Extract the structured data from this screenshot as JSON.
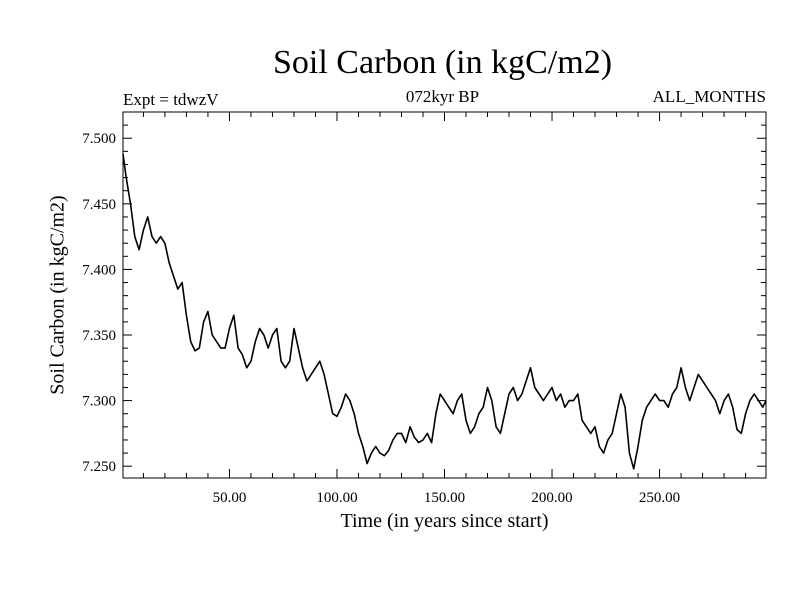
{
  "chart_data": {
    "type": "line",
    "title": "Soil Carbon (in kgC/m2)",
    "subtitle": "072kyr BP",
    "annotation_left": "Expt = tdwzV",
    "annotation_right": "ALL_MONTHS",
    "xlabel": "Time (in years since start)",
    "ylabel": "Soil Carbon (in kgC/m2)",
    "xlim": [
      0.5,
      299.5
    ],
    "ylim": [
      7.241,
      7.52
    ],
    "xticks": [
      50,
      100,
      150,
      200,
      250
    ],
    "xtick_labels": [
      "50.00",
      "100.00",
      "150.00",
      "200.00",
      "250.00"
    ],
    "yticks": [
      7.25,
      7.3,
      7.35,
      7.4,
      7.45,
      7.5
    ],
    "ytick_labels": [
      "7.250",
      "7.300",
      "7.350",
      "7.400",
      "7.450",
      "7.500"
    ],
    "grid": false,
    "series": [
      {
        "color": "#000000",
        "x": [
          0.5,
          2,
          4,
          6,
          8,
          10,
          12,
          14,
          16,
          18,
          20,
          22,
          24,
          26,
          28,
          30,
          32,
          34,
          36,
          38,
          40,
          42,
          44,
          46,
          48,
          50,
          52,
          54,
          56,
          58,
          60,
          62,
          64,
          66,
          68,
          70,
          72,
          74,
          76,
          78,
          80,
          82,
          84,
          86,
          88,
          90,
          92,
          94,
          96,
          98,
          100,
          102,
          104,
          106,
          108,
          110,
          112,
          114,
          116,
          118,
          120,
          122,
          124,
          126,
          128,
          130,
          132,
          134,
          136,
          138,
          140,
          142,
          144,
          146,
          148,
          150,
          152,
          154,
          156,
          158,
          160,
          162,
          164,
          166,
          168,
          170,
          172,
          174,
          176,
          178,
          180,
          182,
          184,
          186,
          188,
          190,
          192,
          194,
          196,
          198,
          200,
          202,
          204,
          206,
          208,
          210,
          212,
          214,
          216,
          218,
          220,
          222,
          224,
          226,
          228,
          230,
          232,
          234,
          236,
          238,
          240,
          242,
          244,
          246,
          248,
          250,
          252,
          254,
          256,
          258,
          260,
          262,
          264,
          266,
          268,
          270,
          272,
          274,
          276,
          278,
          280,
          282,
          284,
          286,
          288,
          290,
          292,
          294,
          296,
          298,
          299.5
        ],
        "y": [
          7.488,
          7.47,
          7.45,
          7.425,
          7.415,
          7.43,
          7.44,
          7.425,
          7.42,
          7.425,
          7.42,
          7.405,
          7.395,
          7.385,
          7.39,
          7.365,
          7.345,
          7.338,
          7.34,
          7.36,
          7.368,
          7.35,
          7.345,
          7.34,
          7.34,
          7.355,
          7.365,
          7.34,
          7.335,
          7.325,
          7.33,
          7.345,
          7.355,
          7.35,
          7.34,
          7.35,
          7.355,
          7.33,
          7.325,
          7.33,
          7.355,
          7.34,
          7.325,
          7.315,
          7.32,
          7.325,
          7.33,
          7.32,
          7.305,
          7.29,
          7.288,
          7.295,
          7.305,
          7.3,
          7.29,
          7.275,
          7.265,
          7.252,
          7.26,
          7.265,
          7.26,
          7.258,
          7.262,
          7.27,
          7.275,
          7.275,
          7.268,
          7.28,
          7.272,
          7.268,
          7.27,
          7.275,
          7.268,
          7.29,
          7.305,
          7.3,
          7.295,
          7.29,
          7.3,
          7.305,
          7.285,
          7.275,
          7.28,
          7.29,
          7.295,
          7.31,
          7.3,
          7.28,
          7.275,
          7.29,
          7.305,
          7.31,
          7.3,
          7.305,
          7.315,
          7.325,
          7.31,
          7.305,
          7.3,
          7.305,
          7.31,
          7.3,
          7.305,
          7.295,
          7.3,
          7.3,
          7.305,
          7.285,
          7.28,
          7.275,
          7.28,
          7.265,
          7.26,
          7.27,
          7.275,
          7.29,
          7.305,
          7.295,
          7.26,
          7.248,
          7.265,
          7.285,
          7.295,
          7.3,
          7.305,
          7.3,
          7.3,
          7.295,
          7.305,
          7.31,
          7.325,
          7.31,
          7.3,
          7.31,
          7.32,
          7.315,
          7.31,
          7.305,
          7.3,
          7.29,
          7.3,
          7.305,
          7.295,
          7.278,
          7.275,
          7.29,
          7.3,
          7.305,
          7.3,
          7.295,
          7.3
        ]
      }
    ]
  }
}
